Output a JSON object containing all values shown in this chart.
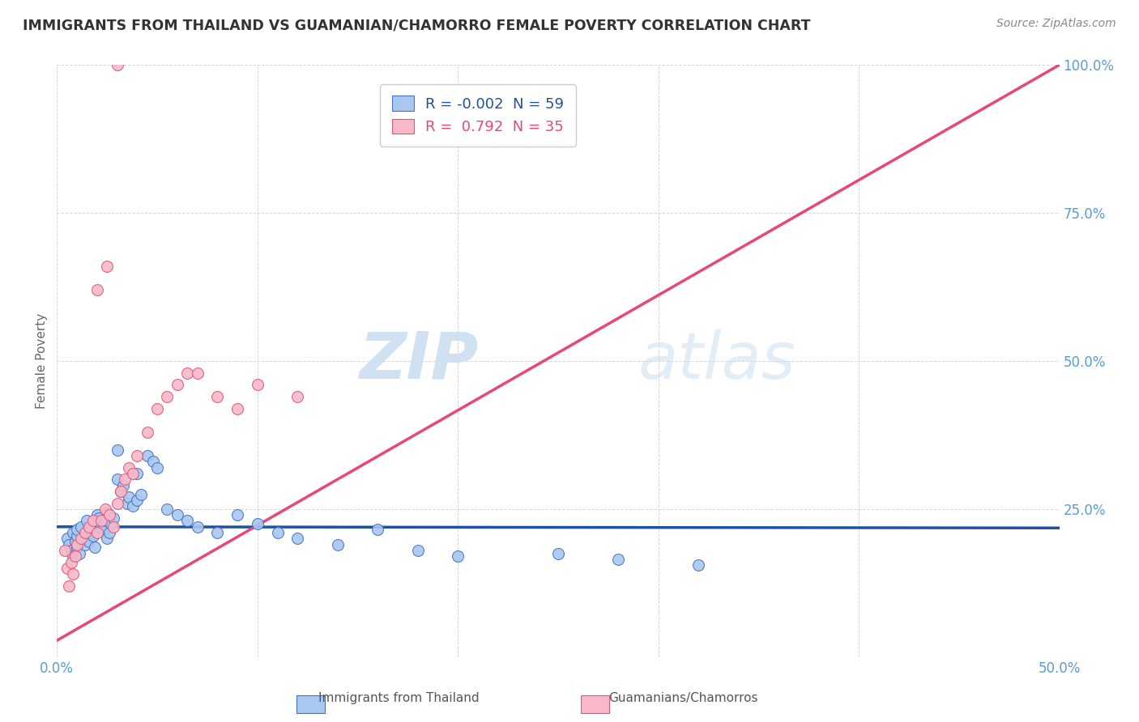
{
  "title": "IMMIGRANTS FROM THAILAND VS GUAMANIAN/CHAMORRO FEMALE POVERTY CORRELATION CHART",
  "source": "Source: ZipAtlas.com",
  "ylabel": "Female Poverty",
  "xlim": [
    0.0,
    0.5
  ],
  "ylim": [
    0.0,
    1.0
  ],
  "xticks": [
    0.0,
    0.1,
    0.2,
    0.3,
    0.4,
    0.5
  ],
  "xticklabels": [
    "0.0%",
    "",
    "",
    "",
    "",
    "50.0%"
  ],
  "yticks": [
    0.25,
    0.5,
    0.75,
    1.0
  ],
  "yticklabels": [
    "25.0%",
    "50.0%",
    "75.0%",
    "100.0%"
  ],
  "watermark_zip": "ZIP",
  "watermark_atlas": "atlas",
  "legend_label1": "R = -0.002  N = 59",
  "legend_label2": "R =  0.792  N = 35",
  "blue_scatter_x": [
    0.005,
    0.006,
    0.007,
    0.008,
    0.008,
    0.009,
    0.01,
    0.01,
    0.01,
    0.011,
    0.012,
    0.013,
    0.014,
    0.015,
    0.015,
    0.016,
    0.017,
    0.018,
    0.019,
    0.02,
    0.02,
    0.021,
    0.022,
    0.023,
    0.024,
    0.025,
    0.025,
    0.026,
    0.027,
    0.028,
    0.03,
    0.03,
    0.032,
    0.033,
    0.035,
    0.036,
    0.038,
    0.04,
    0.04,
    0.042,
    0.045,
    0.048,
    0.05,
    0.055,
    0.06,
    0.065,
    0.07,
    0.08,
    0.09,
    0.1,
    0.11,
    0.12,
    0.14,
    0.16,
    0.18,
    0.2,
    0.25,
    0.28,
    0.32
  ],
  "blue_scatter_y": [
    0.2,
    0.19,
    0.18,
    0.21,
    0.17,
    0.195,
    0.205,
    0.215,
    0.185,
    0.175,
    0.22,
    0.2,
    0.19,
    0.21,
    0.23,
    0.195,
    0.215,
    0.205,
    0.185,
    0.225,
    0.24,
    0.235,
    0.22,
    0.215,
    0.23,
    0.245,
    0.2,
    0.21,
    0.225,
    0.235,
    0.3,
    0.35,
    0.28,
    0.29,
    0.26,
    0.27,
    0.255,
    0.31,
    0.265,
    0.275,
    0.34,
    0.33,
    0.32,
    0.25,
    0.24,
    0.23,
    0.22,
    0.21,
    0.24,
    0.225,
    0.21,
    0.2,
    0.19,
    0.215,
    0.18,
    0.17,
    0.175,
    0.165,
    0.155
  ],
  "pink_scatter_x": [
    0.004,
    0.005,
    0.006,
    0.007,
    0.008,
    0.009,
    0.01,
    0.012,
    0.014,
    0.016,
    0.018,
    0.02,
    0.022,
    0.024,
    0.026,
    0.028,
    0.03,
    0.032,
    0.034,
    0.036,
    0.038,
    0.04,
    0.045,
    0.05,
    0.055,
    0.06,
    0.065,
    0.07,
    0.08,
    0.09,
    0.1,
    0.12,
    0.02,
    0.025,
    0.03
  ],
  "pink_scatter_y": [
    0.18,
    0.15,
    0.12,
    0.16,
    0.14,
    0.17,
    0.19,
    0.2,
    0.21,
    0.22,
    0.23,
    0.21,
    0.23,
    0.25,
    0.24,
    0.22,
    0.26,
    0.28,
    0.3,
    0.32,
    0.31,
    0.34,
    0.38,
    0.42,
    0.44,
    0.46,
    0.48,
    0.48,
    0.44,
    0.42,
    0.46,
    0.44,
    0.62,
    0.66,
    1.0
  ],
  "blue_line_x": [
    0.0,
    0.5
  ],
  "blue_line_y": [
    0.22,
    0.218
  ],
  "pink_line_x": [
    0.0,
    0.5
  ],
  "pink_line_y": [
    0.028,
    1.0
  ],
  "dot_size": 100,
  "blue_color": "#a8c8f0",
  "blue_edge_color": "#4472c4",
  "pink_color": "#f8b8c8",
  "pink_edge_color": "#e05878",
  "blue_line_color": "#2050a0",
  "pink_line_color": "#e84878",
  "grid_color": "#cccccc",
  "axis_tick_color": "#5b9bd5",
  "title_color": "#333333",
  "source_color": "#888888"
}
